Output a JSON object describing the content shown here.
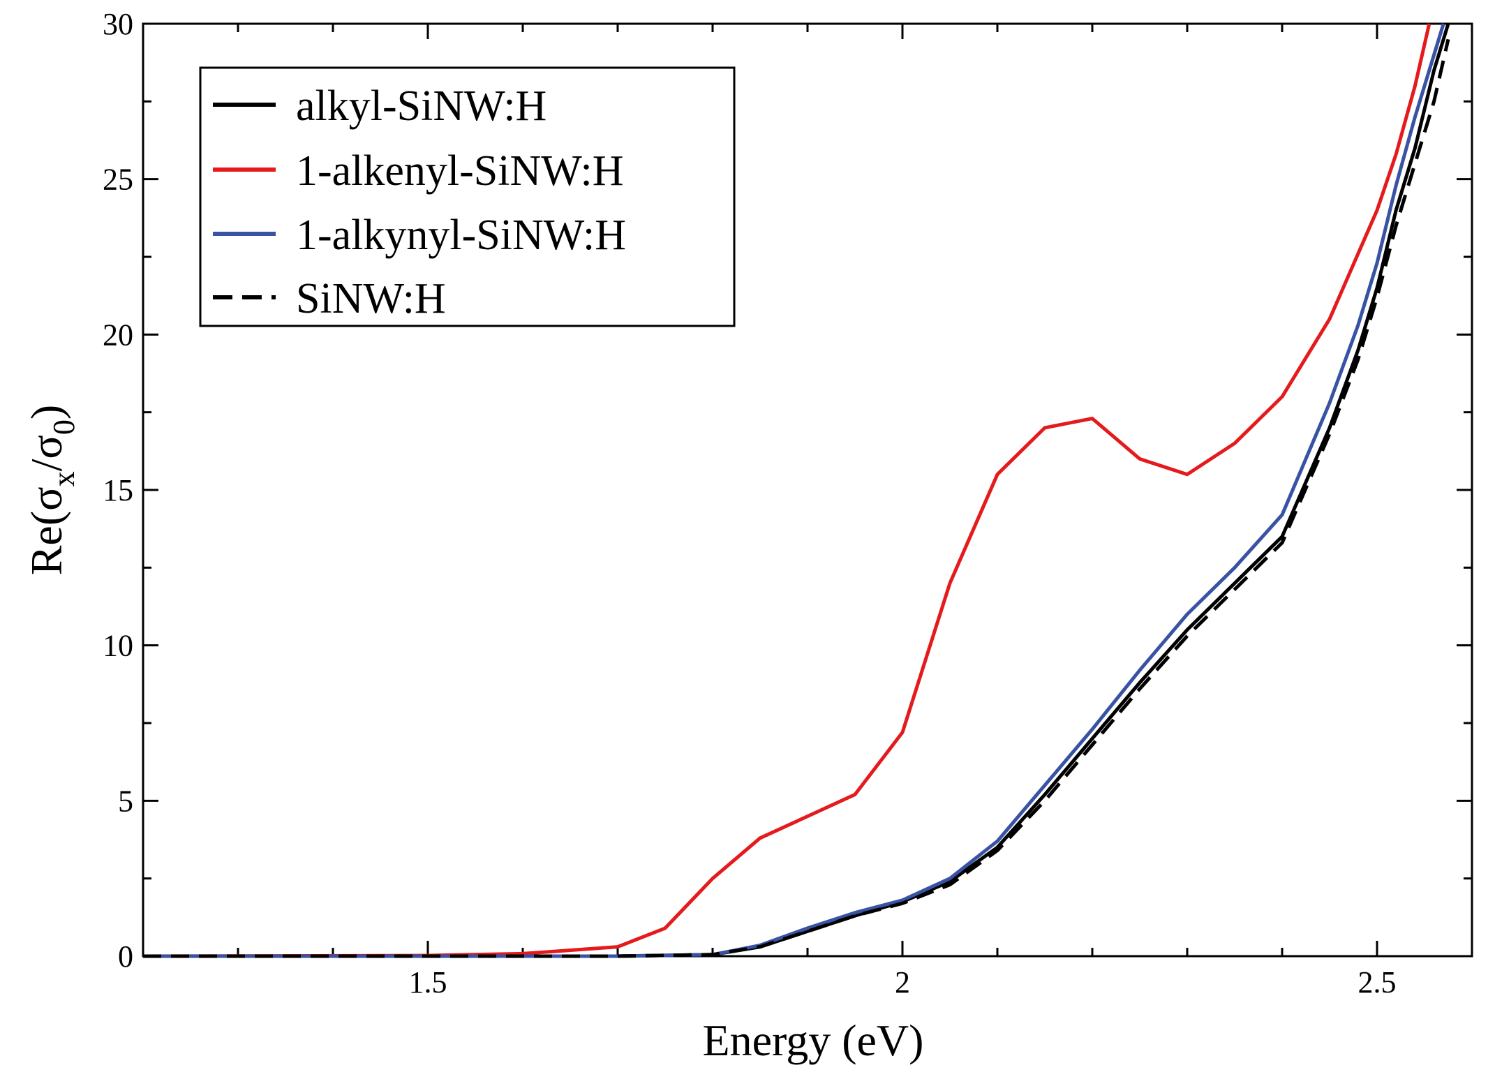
{
  "chart_data": {
    "type": "line",
    "title": "",
    "xlabel": "Energy (eV)",
    "ylabel": {
      "base": "Re(",
      "sigma1": "σ",
      "sub1": "x",
      "slash": "/",
      "sigma2": "σ",
      "sub2": "0",
      "close": ")"
    },
    "xlim": [
      1.2,
      2.6
    ],
    "ylim": [
      0,
      30
    ],
    "xticks": [
      1.5,
      2.0,
      2.5
    ],
    "xtick_labels": [
      "1.5",
      "2",
      "2.5"
    ],
    "yticks": [
      0,
      5,
      10,
      15,
      20,
      25,
      30
    ],
    "ytick_labels": [
      "0",
      "5",
      "10",
      "15",
      "20",
      "25",
      "30"
    ],
    "legend_position": "top-left",
    "series": [
      {
        "name": "alkyl-SiNW:H",
        "color": "#000000",
        "style": "solid",
        "x": [
          1.2,
          1.7,
          1.8,
          1.85,
          1.9,
          1.95,
          2.0,
          2.05,
          2.1,
          2.15,
          2.2,
          2.25,
          2.3,
          2.35,
          2.4,
          2.45,
          2.48,
          2.5,
          2.52,
          2.54,
          2.56,
          2.575
        ],
        "y": [
          0,
          0,
          0.05,
          0.3,
          0.8,
          1.3,
          1.75,
          2.4,
          3.5,
          5.2,
          7.0,
          8.8,
          10.5,
          12.0,
          13.5,
          17.0,
          19.5,
          21.5,
          24.0,
          26.0,
          28.5,
          30.0
        ]
      },
      {
        "name": "1-alkenyl-SiNW:H",
        "color": "#e41a1c",
        "style": "solid",
        "x": [
          1.2,
          1.5,
          1.6,
          1.7,
          1.75,
          1.8,
          1.85,
          1.9,
          1.95,
          2.0,
          2.05,
          2.1,
          2.15,
          2.2,
          2.25,
          2.3,
          2.35,
          2.4,
          2.45,
          2.5,
          2.52,
          2.54,
          2.555
        ],
        "y": [
          0,
          0.02,
          0.08,
          0.3,
          0.9,
          2.5,
          3.8,
          4.5,
          5.2,
          7.2,
          12.0,
          15.5,
          17.0,
          17.3,
          16.0,
          15.5,
          16.5,
          18.0,
          20.5,
          24.0,
          25.8,
          28.0,
          30.0
        ]
      },
      {
        "name": "1-alkynyl-SiNW:H",
        "color": "#3953a4",
        "style": "solid",
        "x": [
          1.2,
          1.7,
          1.8,
          1.85,
          1.9,
          1.95,
          2.0,
          2.05,
          2.1,
          2.15,
          2.2,
          2.25,
          2.3,
          2.35,
          2.4,
          2.45,
          2.48,
          2.5,
          2.52,
          2.54,
          2.56,
          2.57
        ],
        "y": [
          0,
          0,
          0.05,
          0.35,
          0.9,
          1.4,
          1.8,
          2.5,
          3.7,
          5.5,
          7.3,
          9.2,
          11.0,
          12.5,
          14.2,
          17.8,
          20.3,
          22.3,
          24.8,
          27.0,
          29.0,
          30.0
        ]
      },
      {
        "name": "SiNW:H",
        "color": "#000000",
        "style": "dashed",
        "x": [
          1.2,
          1.7,
          1.8,
          1.85,
          1.9,
          1.95,
          2.0,
          2.05,
          2.1,
          2.15,
          2.2,
          2.25,
          2.3,
          2.35,
          2.4,
          2.45,
          2.48,
          2.5,
          2.52,
          2.54,
          2.56,
          2.575
        ],
        "y": [
          0,
          0,
          0.05,
          0.3,
          0.8,
          1.3,
          1.7,
          2.3,
          3.4,
          5.0,
          6.8,
          8.6,
          10.3,
          11.8,
          13.3,
          16.8,
          19.2,
          21.2,
          23.5,
          25.5,
          27.5,
          29.5
        ]
      }
    ]
  }
}
